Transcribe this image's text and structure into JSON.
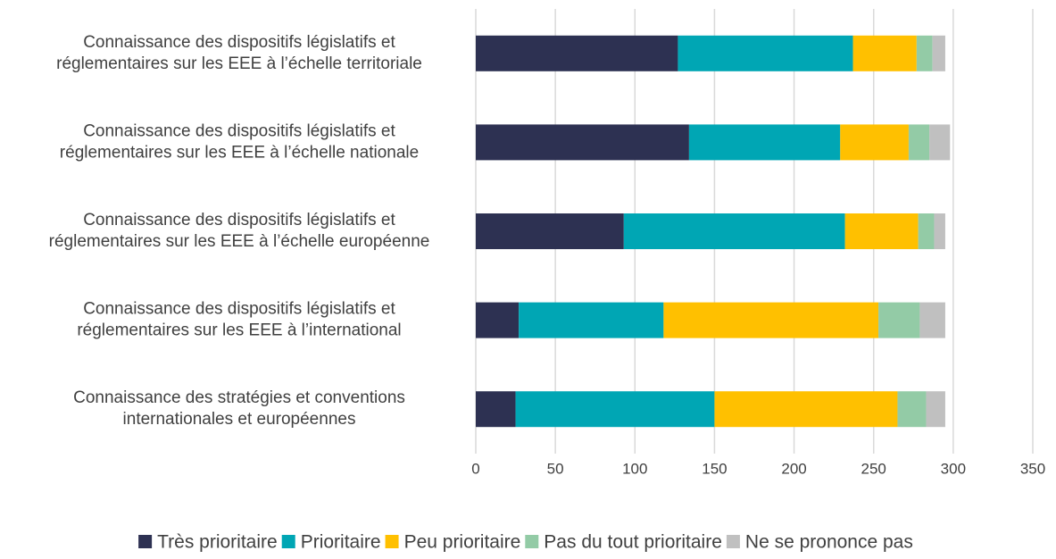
{
  "chart_data": {
    "type": "stacked_barh",
    "categories": [
      "Connaissance des dispositifs législatifs et\nréglementaires sur les EEE à l’échelle territoriale",
      "Connaissance des dispositifs législatifs et\nréglementaires sur les EEE à l’échelle nationale",
      "Connaissance des dispositifs législatifs et\nréglementaires sur les EEE à l’échelle européenne",
      "Connaissance des dispositifs législatifs et\nréglementaires sur les EEE à l’international",
      "Connaissance des stratégies et conventions\ninternationales et européennes"
    ],
    "series": [
      {
        "name": "Très prioritaire",
        "color": "#2d3152",
        "values": [
          127,
          134,
          93,
          27,
          25
        ]
      },
      {
        "name": "Prioritaire",
        "color": "#00a6b4",
        "values": [
          110,
          95,
          139,
          91,
          125
        ]
      },
      {
        "name": "Peu prioritaire",
        "color": "#ffc000",
        "values": [
          40,
          43,
          46,
          135,
          115
        ]
      },
      {
        "name": "Pas du tout prioritaire",
        "color": "#93cba6",
        "values": [
          10,
          13,
          10,
          26,
          18
        ]
      },
      {
        "name": "Ne se prononce pas",
        "color": "#c0c0c0",
        "values": [
          8,
          13,
          7,
          16,
          12
        ]
      }
    ],
    "xlim": [
      0,
      350
    ],
    "xticks": [
      0,
      50,
      100,
      150,
      200,
      250,
      300,
      350
    ],
    "grid": true,
    "legend": "bottom"
  }
}
